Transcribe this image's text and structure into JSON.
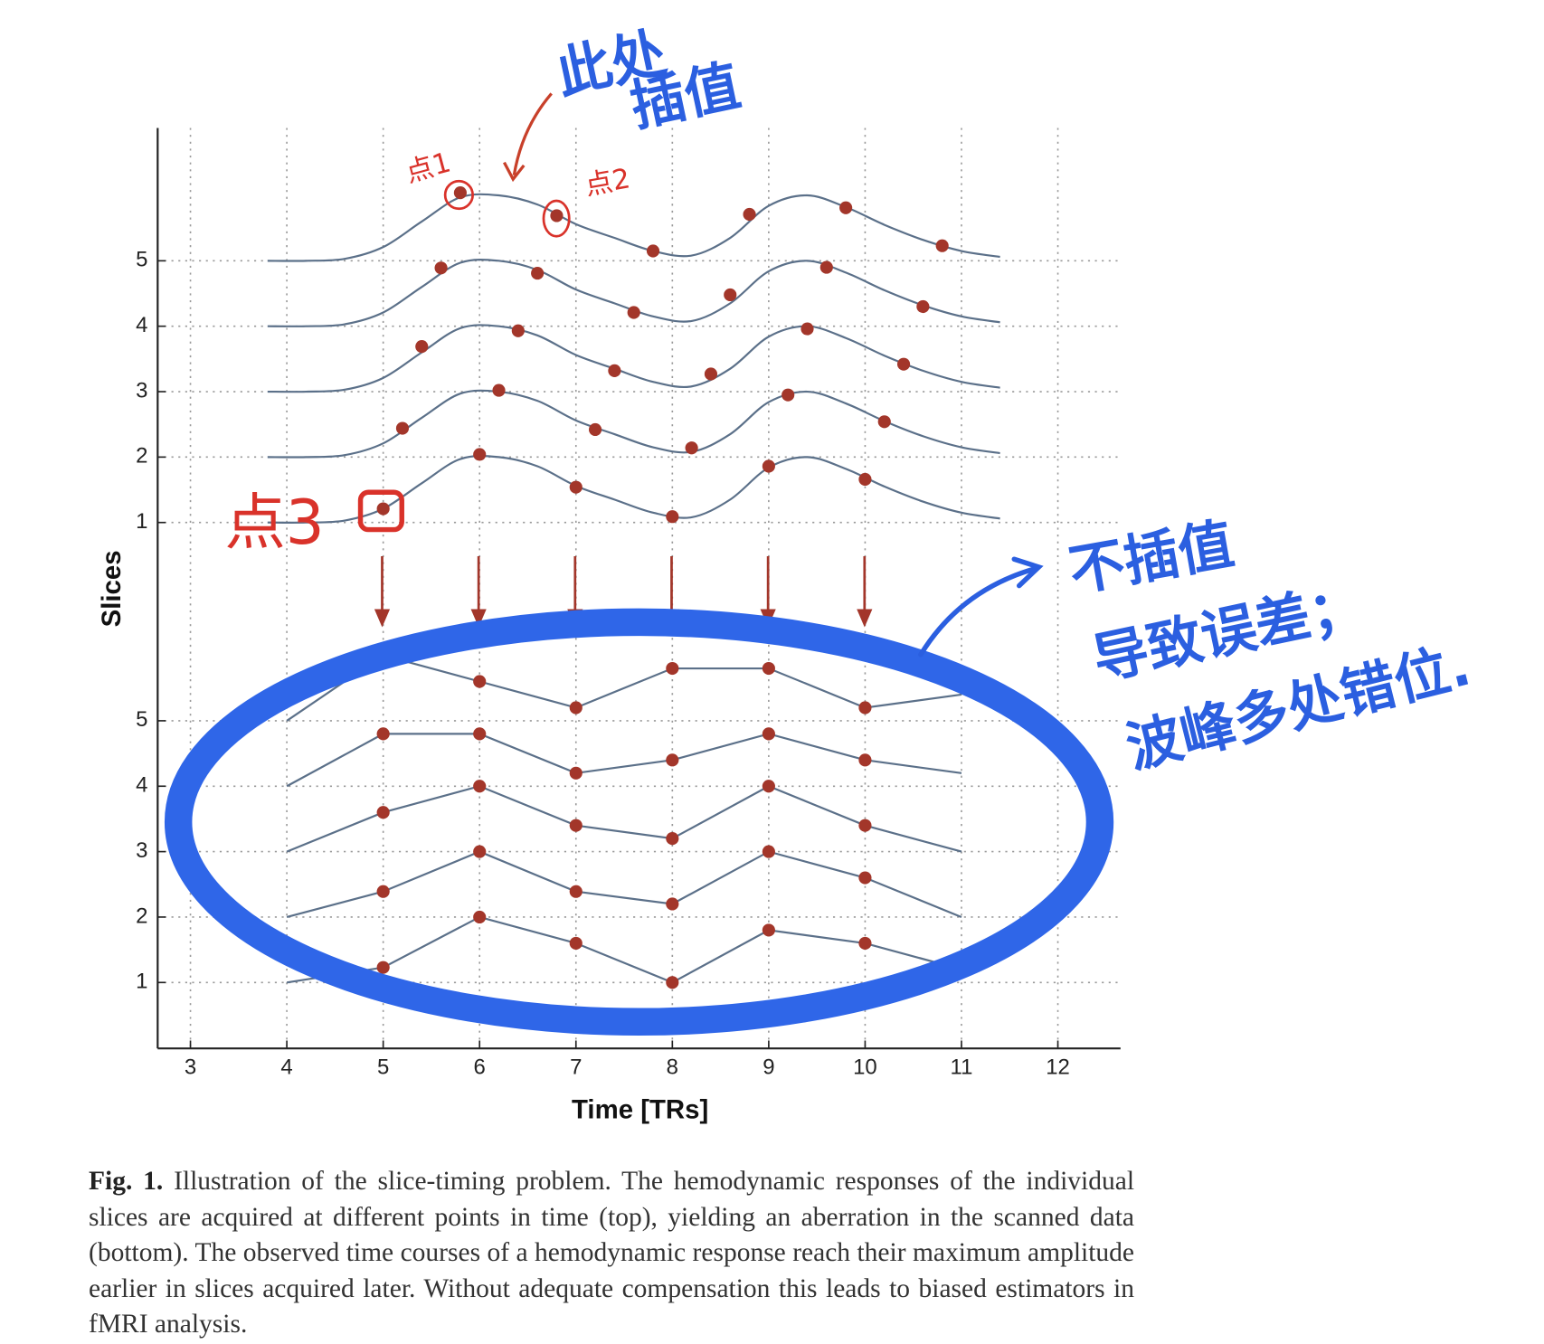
{
  "chart_data": {
    "type": "line",
    "xlabel": "Time [TRs]",
    "ylabel": "Slices",
    "xlim": [
      2.66,
      12.65
    ],
    "xticks": [
      3,
      4,
      5,
      6,
      7,
      8,
      9,
      10,
      11,
      12
    ],
    "grid": true,
    "line_color": "#5b7089",
    "marker_color": "#a3362a",
    "panels": [
      {
        "ylim": [
          0.5,
          7
        ],
        "yticks": [
          1,
          2,
          3,
          4,
          5
        ],
        "smooth": true,
        "x": [
          3.8,
          4.2,
          4.6,
          5.0,
          5.4,
          5.8,
          6.2,
          6.6,
          7.0,
          7.4,
          7.8,
          8.2,
          8.6,
          9.0,
          9.4,
          9.8,
          10.2,
          10.6,
          11.0,
          11.4
        ],
        "series": [
          {
            "values": [
              1,
              1,
              1.03,
              1.21,
              1.6,
              1.97,
              2,
              1.86,
              1.56,
              1.35,
              1.15,
              1.08,
              1.35,
              1.84,
              2,
              1.82,
              1.55,
              1.32,
              1.15,
              1.06
            ],
            "sample_x": [
              5,
              6,
              7,
              8,
              9,
              10
            ],
            "samples": [
              1.21,
              2.04,
              1.54,
              1.09,
              1.86,
              1.66
            ]
          },
          {
            "values": [
              2,
              2,
              2.03,
              2.21,
              2.6,
              2.97,
              3,
              2.86,
              2.56,
              2.35,
              2.15,
              2.08,
              2.35,
              2.84,
              3,
              2.82,
              2.55,
              2.32,
              2.15,
              2.06
            ],
            "sample_x": [
              5.2,
              6.2,
              7.2,
              8.2,
              9.2,
              10.2
            ],
            "samples": [
              2.44,
              3.02,
              2.42,
              2.14,
              2.95,
              2.54
            ]
          },
          {
            "values": [
              3,
              3,
              3.03,
              3.21,
              3.6,
              3.97,
              4,
              3.86,
              3.56,
              3.35,
              3.15,
              3.08,
              3.35,
              3.84,
              4,
              3.82,
              3.55,
              3.32,
              3.15,
              3.06
            ],
            "sample_x": [
              5.4,
              6.4,
              7.4,
              8.4,
              9.4,
              10.4
            ],
            "samples": [
              3.69,
              3.93,
              3.32,
              3.27,
              3.96,
              3.42
            ]
          },
          {
            "values": [
              4,
              4,
              4.03,
              4.21,
              4.6,
              4.97,
              5,
              4.86,
              4.56,
              4.35,
              4.15,
              4.08,
              4.35,
              4.84,
              5,
              4.82,
              4.55,
              4.32,
              4.15,
              4.06
            ],
            "sample_x": [
              5.6,
              6.6,
              7.6,
              8.6,
              9.6,
              10.6
            ],
            "samples": [
              4.89,
              4.81,
              4.21,
              4.48,
              4.9,
              4.3
            ]
          },
          {
            "values": [
              5,
              5,
              5.03,
              5.21,
              5.6,
              5.97,
              6,
              5.86,
              5.56,
              5.35,
              5.15,
              5.08,
              5.35,
              5.84,
              6,
              5.82,
              5.55,
              5.32,
              5.15,
              5.06
            ],
            "sample_x": [
              5.8,
              6.8,
              7.8,
              8.8,
              9.8,
              10.8
            ],
            "samples": [
              6.04,
              5.69,
              5.15,
              5.71,
              5.81,
              5.23
            ]
          }
        ]
      },
      {
        "ylim": [
          0,
          7.5
        ],
        "yticks": [
          1,
          2,
          3,
          4,
          5
        ],
        "smooth": false,
        "x": [
          4,
          5,
          6,
          7,
          8,
          9,
          10,
          11
        ],
        "series": [
          {
            "values": [
              1,
              1.23,
              2,
              1.6,
              1,
              1.8,
              1.6,
              1.2
            ]
          },
          {
            "values": [
              2,
              2.39,
              3,
              2.39,
              2.2,
              3,
              2.6,
              2
            ]
          },
          {
            "values": [
              3,
              3.6,
              4,
              3.4,
              3.2,
              4,
              3.4,
              3
            ]
          },
          {
            "values": [
              4,
              4.8,
              4.8,
              4.2,
              4.4,
              4.8,
              4.4,
              4.2
            ]
          },
          {
            "values": [
              5,
              6,
              5.6,
              5.2,
              5.8,
              5.8,
              5.2,
              5.4
            ]
          }
        ]
      }
    ],
    "annotations": [
      "此处",
      "插值",
      "点1",
      "点2",
      "点3",
      "不插值",
      "导致误差；",
      "波峰多处错位."
    ]
  },
  "caption": {
    "label": "Fig. 1.",
    "text": "Illustration of the slice-timing problem. The hemodynamic responses of the individual slices are acquired at different points in time (top), yielding an aberration in the scanned data (bottom). The observed time courses of a hemodynamic response reach their maximum amplitude earlier in slices acquired later. Without adequate compensation this leads to biased estimators in fMRI analysis."
  }
}
